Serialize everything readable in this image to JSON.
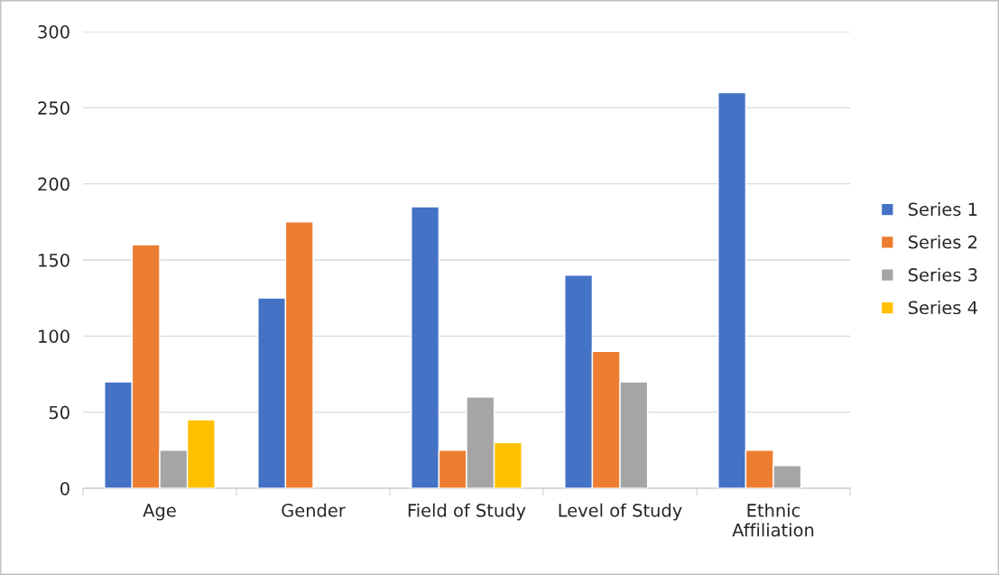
{
  "chart_data": {
    "type": "bar",
    "categories": [
      "Age",
      "Gender",
      "Field of Study",
      "Level of Study",
      "Ethnic\nAffiliation"
    ],
    "series": [
      {
        "name": "Series 1",
        "color": "#4472c4",
        "values": [
          70,
          125,
          185,
          140,
          260
        ]
      },
      {
        "name": "Series 2",
        "color": "#ed7d31",
        "values": [
          160,
          175,
          25,
          90,
          25
        ]
      },
      {
        "name": "Series 3",
        "color": "#a5a5a5",
        "values": [
          25,
          null,
          60,
          70,
          15
        ]
      },
      {
        "name": "Series 4",
        "color": "#ffc000",
        "values": [
          45,
          null,
          30,
          null,
          null
        ]
      }
    ],
    "ylim": [
      0,
      300
    ],
    "yticks": [
      0,
      50,
      100,
      150,
      200,
      250,
      300
    ],
    "grid": "y",
    "legend": "right"
  }
}
